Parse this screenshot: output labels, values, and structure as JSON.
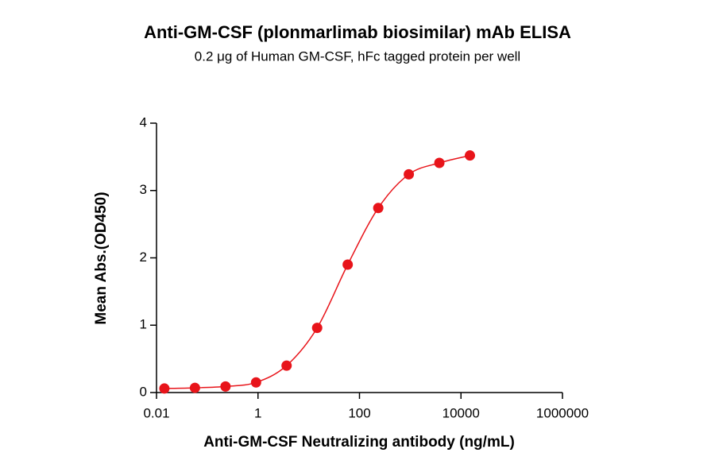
{
  "chart_data": {
    "type": "scatter",
    "title": "Anti-GM-CSF (plonmarlimab biosimilar) mAb ELISA",
    "subtitle": "0.2 μg of Human GM-CSF, hFc tagged protein per well",
    "x_label": "Anti-GM-CSF Neutralizing antibody (ng/mL)",
    "y_label": "Mean Abs.(OD450)",
    "x_scale": "log",
    "x": [
      0.0143,
      0.0572,
      0.229,
      0.916,
      3.66,
      14.65,
      58.6,
      234.4,
      937.5,
      3750,
      15000
    ],
    "series": [
      {
        "color": "#e8141a",
        "values": [
          0.06,
          0.07,
          0.09,
          0.15,
          0.4,
          0.96,
          1.9,
          2.74,
          3.24,
          3.41,
          3.52
        ]
      }
    ],
    "xlim": [
      0.01,
      1000000
    ],
    "xticks": [
      0.01,
      1,
      100,
      10000,
      1000000
    ],
    "ylim": [
      0,
      4
    ],
    "yticks": [
      0,
      1,
      2,
      3,
      4
    ],
    "fit_curve": true,
    "grid": false
  }
}
